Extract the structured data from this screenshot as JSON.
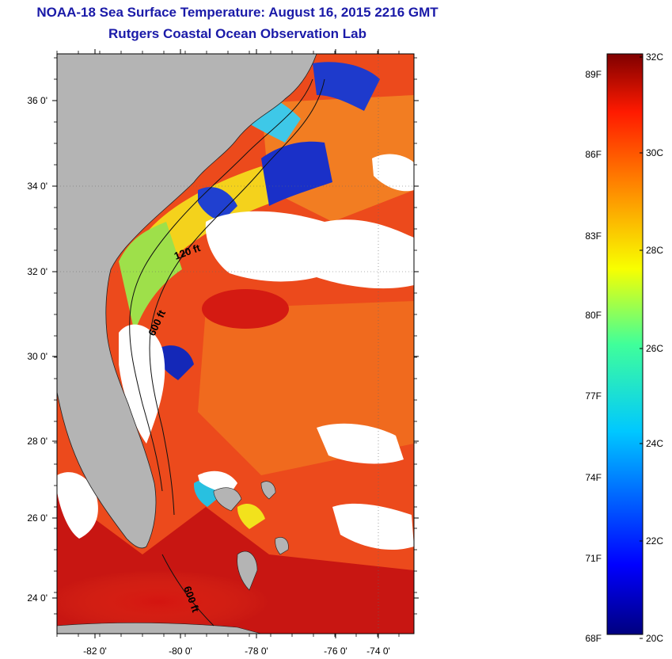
{
  "title": "NOAA-18 Sea Surface Temperature:  August 16, 2015 2216 GMT",
  "subtitle": "Rutgers Coastal Ocean Observation Lab",
  "map": {
    "lon_labels": [
      "-82 0'",
      "-80 0'",
      "-78 0'",
      "-76 0'",
      "-74 0'"
    ],
    "lat_labels": [
      "36 0'",
      "34 0'",
      "32 0'",
      "30 0'",
      "28 0'",
      "26 0'",
      "24 0'"
    ],
    "contour_labels": [
      "120 ft",
      "600 ft",
      "600 ft"
    ],
    "colors": {
      "land": "#b4b4b4",
      "cloud": "#ffffff",
      "warm": "#e8381a",
      "hot": "#c41010",
      "cool": "#1420b8"
    }
  },
  "colorbar": {
    "celsius": [
      "32C",
      "30C",
      "28C",
      "26C",
      "24C",
      "22C",
      "20C"
    ],
    "fahrenheit": [
      "89F",
      "86F",
      "83F",
      "80F",
      "77F",
      "74F",
      "71F",
      "68F"
    ]
  }
}
